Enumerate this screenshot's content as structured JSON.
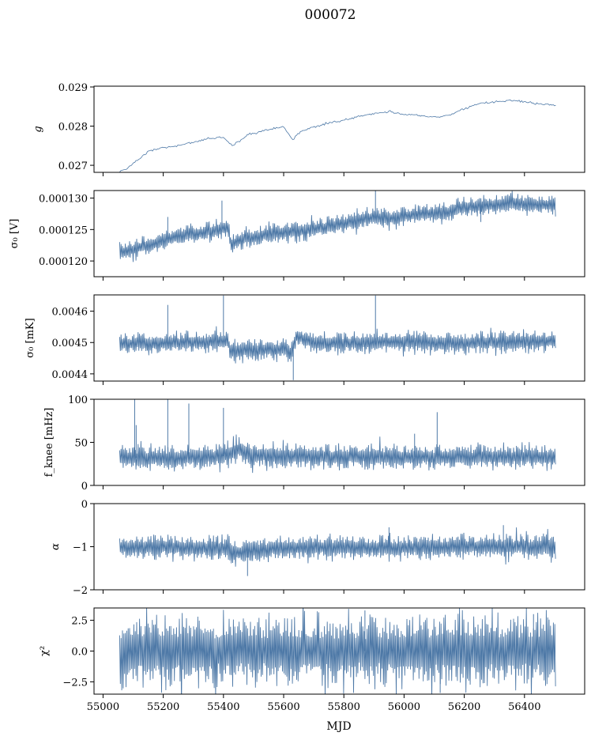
{
  "figure_title": "000072",
  "colors": {
    "series": "#4e79a7",
    "axis": "#000000"
  },
  "xaxis": {
    "label": "MJD",
    "lim": [
      54970,
      56600
    ],
    "data_range": [
      55055,
      56505
    ],
    "ticks": [
      55000,
      55200,
      55400,
      55600,
      55800,
      56000,
      56200,
      56400
    ],
    "tick_labels": [
      "55000",
      "55200",
      "55400",
      "55600",
      "55800",
      "56000",
      "56200",
      "56400"
    ]
  },
  "chart_data": [
    {
      "type": "line",
      "ylabel": "g",
      "ylim": [
        0.02682,
        0.02902
      ],
      "yticks": [
        0.027,
        0.028,
        0.029
      ],
      "ytick_labels": [
        "0.027",
        "0.028",
        "0.029"
      ],
      "series": [
        {
          "x": [
            55055,
            55080,
            55100,
            55150,
            55200,
            55250,
            55300,
            55350,
            55400,
            55430,
            55450,
            55480,
            55500,
            55550,
            55600,
            55630,
            55645,
            55660,
            55700,
            55750,
            55800,
            55850,
            55900,
            55950,
            56000,
            56050,
            56100,
            56150,
            56200,
            56250,
            56300,
            56350,
            56400,
            56450,
            56505
          ],
          "y": [
            0.02685,
            0.0269,
            0.02705,
            0.02735,
            0.02745,
            0.0275,
            0.0276,
            0.02768,
            0.02772,
            0.0275,
            0.0276,
            0.02778,
            0.02782,
            0.02792,
            0.02797,
            0.02765,
            0.02778,
            0.02788,
            0.02798,
            0.02808,
            0.02815,
            0.02825,
            0.02832,
            0.02838,
            0.0283,
            0.02828,
            0.02822,
            0.02828,
            0.02845,
            0.02858,
            0.02862,
            0.02866,
            0.02862,
            0.02856,
            0.02854
          ],
          "noise": 2.5e-05,
          "spikes": [],
          "mode": "line"
        }
      ]
    },
    {
      "type": "line",
      "ylabel": "σ₀ [V]",
      "ylim": [
        0.0001175,
        0.0001312
      ],
      "yticks": [
        0.00012,
        0.000125,
        0.00013
      ],
      "ytick_labels": [
        "0.000120",
        "0.000125",
        "0.000130"
      ],
      "series": [
        {
          "x": [
            55055,
            55100,
            55150,
            55200,
            55250,
            55300,
            55350,
            55400,
            55420,
            55422,
            55450,
            55500,
            55550,
            55600,
            55650,
            55700,
            55750,
            55800,
            55850,
            55900,
            55910,
            55950,
            56000,
            56050,
            56100,
            56150,
            56200,
            56250,
            56300,
            56350,
            56400,
            56450,
            56505
          ],
          "y": [
            0.0001212,
            0.0001218,
            0.0001225,
            0.0001233,
            0.000124,
            0.0001242,
            0.0001247,
            0.0001252,
            0.0001252,
            0.0001225,
            0.0001233,
            0.0001238,
            0.0001243,
            0.0001245,
            0.0001248,
            0.000125,
            0.0001255,
            0.000126,
            0.0001265,
            0.000127,
            0.0001268,
            0.0001268,
            0.0001271,
            0.0001274,
            0.0001276,
            0.0001278,
            0.0001285,
            0.0001287,
            0.000129,
            0.0001292,
            0.000129,
            0.0001289,
            0.0001288
          ],
          "noise": 5.5e-07,
          "spikes": [
            [
              55215,
              0.000127
            ],
            [
              55395,
              0.0001296
            ],
            [
              55905,
              0.0001312
            ],
            [
              55930,
              0.0001278
            ],
            [
              56255,
              0.0001262
            ]
          ],
          "mode": "band"
        }
      ]
    },
    {
      "type": "line",
      "ylabel": "σ₀ [mK]",
      "ylim": [
        0.004377,
        0.004652
      ],
      "yticks": [
        0.0044,
        0.0045,
        0.0046
      ],
      "ytick_labels": [
        "0.0044",
        "0.0045",
        "0.0046"
      ],
      "series": [
        {
          "x": [
            55055,
            55200,
            55300,
            55400,
            55418,
            55420,
            55500,
            55600,
            55625,
            55640,
            55700,
            55800,
            55900,
            56000,
            56100,
            56200,
            56300,
            56400,
            56505
          ],
          "y": [
            0.004495,
            0.004498,
            0.0045,
            0.004505,
            0.004505,
            0.00447,
            0.004475,
            0.00448,
            0.00446,
            0.00452,
            0.0045,
            0.004498,
            0.0045,
            0.004503,
            0.004498,
            0.004498,
            0.004502,
            0.004505,
            0.004505
          ],
          "noise": 1.2e-05,
          "spikes": [
            [
              55215,
              0.00462
            ],
            [
              55400,
              0.00465
            ],
            [
              55905,
              0.00465
            ],
            [
              55632,
              0.00438
            ]
          ],
          "mode": "band"
        }
      ]
    },
    {
      "type": "line",
      "ylabel": "f_knee [mHz]",
      "ylim": [
        0,
        100
      ],
      "yticks": [
        0,
        50,
        100
      ],
      "ytick_labels": [
        "0",
        "50",
        "100"
      ],
      "series": [
        {
          "x": [
            55055,
            55200,
            55400,
            55450,
            55500,
            55700,
            55900,
            56100,
            56300,
            56505
          ],
          "y": [
            32,
            32,
            34,
            42,
            35,
            33,
            33,
            33,
            33,
            33
          ],
          "noise": 5,
          "spikes": [
            [
              55105,
              100
            ],
            [
              55215,
              100
            ],
            [
              55285,
              95
            ],
            [
              55400,
              90
            ],
            [
              55110,
              70
            ],
            [
              56110,
              85
            ],
            [
              56035,
              60
            ]
          ],
          "mode": "band"
        }
      ]
    },
    {
      "type": "line",
      "ylabel": "α",
      "ylim": [
        -2,
        0
      ],
      "yticks": [
        -2,
        -1,
        0
      ],
      "ytick_labels": [
        "−2",
        "−1",
        "0"
      ],
      "series": [
        {
          "x": [
            55055,
            55200,
            55400,
            55450,
            55500,
            55600,
            55800,
            56000,
            56200,
            56505
          ],
          "y": [
            -1.02,
            -1.0,
            -1.05,
            -1.12,
            -1.1,
            -1.02,
            -1.02,
            -1.02,
            -1.0,
            -1.0
          ],
          "noise": 0.1,
          "spikes": [
            [
              55480,
              -1.68
            ],
            [
              55950,
              -0.55
            ],
            [
              56330,
              -0.5
            ]
          ],
          "mode": "band"
        }
      ]
    },
    {
      "type": "line",
      "ylabel": "χ²",
      "ylim": [
        -3.5,
        3.5
      ],
      "yticks": [
        -2.5,
        0.0,
        2.5
      ],
      "ytick_labels": [
        "−2.5",
        "0.0",
        "2.5"
      ],
      "series": [
        {
          "x": [
            55055,
            56505
          ],
          "y": [
            0,
            0
          ],
          "noise": 1.0,
          "spikes": [
            [
              55870,
              3.3
            ],
            [
              56120,
              -3.4
            ],
            [
              56430,
              3.0
            ]
          ],
          "mode": "band"
        }
      ]
    }
  ]
}
